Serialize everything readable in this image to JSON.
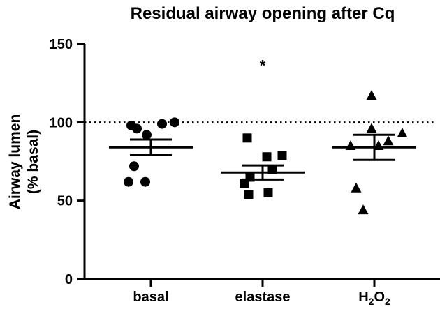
{
  "chart_data": {
    "type": "scatter",
    "title": "Residual airway opening after Cq",
    "xlabel": "",
    "ylabel_line1": "Airway lumen",
    "ylabel_line2": "(% basal)",
    "categories": [
      "basal",
      "elastase",
      "H2O2"
    ],
    "ylim": [
      0,
      150
    ],
    "yticks": [
      0,
      50,
      100,
      150
    ],
    "reference_line": 100,
    "grid": false,
    "legend": "none",
    "annotations": [
      {
        "category": "elastase",
        "text": "*",
        "y": 139
      }
    ],
    "series": [
      {
        "category": "basal",
        "marker": "circle",
        "values": [
          98,
          99,
          100,
          96,
          92,
          72,
          62,
          62
        ],
        "mean": 84,
        "sem": 5
      },
      {
        "category": "elastase",
        "marker": "square",
        "values": [
          90,
          79,
          78,
          70,
          65,
          61,
          55,
          54
        ],
        "mean": 68,
        "sem": 4.5
      },
      {
        "category": "H2O2",
        "marker": "triangle",
        "values": [
          117,
          96,
          93,
          88,
          85,
          85,
          58,
          44
        ],
        "mean": 84,
        "sem": 8
      }
    ]
  }
}
